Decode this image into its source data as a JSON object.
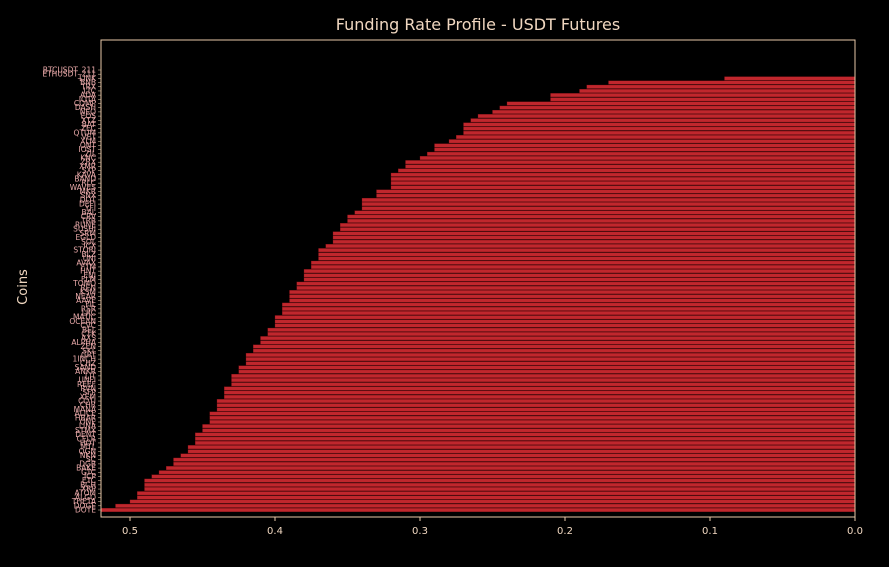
{
  "chart_data": {
    "type": "bar",
    "orientation": "horizontal",
    "title": "Funding Rate Profile - USDT Futures",
    "xlabel": "",
    "ylabel": "Coins",
    "xlim": [
      0.52,
      0.0
    ],
    "x_axis_reversed": true,
    "xticks": [
      0.5,
      0.4,
      0.3,
      0.2,
      0.1,
      0.0
    ],
    "grid": false,
    "legend": "none",
    "bar_color": "#c0272d",
    "background_color": "#000000",
    "frame_color": "#e8c9a8",
    "text_color": "#f0d7c0",
    "tick_label_color": "#e9a9a9",
    "categories": [
      "BTCUSDT_211",
      "ETHUSDT_211",
      "LINK",
      "BNB",
      "TRX",
      "LTC",
      "ADA",
      "IOTA",
      "COMP",
      "DASH",
      "NEO",
      "EOS",
      "XTZ",
      "BAT",
      "ZEC",
      "QTUM",
      "VET",
      "XLM",
      "ONT",
      "IOST",
      "ZIL",
      "KNC",
      "ZRX",
      "XMR",
      "SXP",
      "KAVA",
      "BAND",
      "RLC",
      "WAVES",
      "MKR",
      "SNX",
      "DOT",
      "DEFI",
      "YFI",
      "BAL",
      "CRV",
      "TRB",
      "RUNE",
      "SUSHI",
      "SRM",
      "EGLD",
      "SOL",
      "ICX",
      "STORJ",
      "BLZ",
      "UNI",
      "AVAX",
      "FTM",
      "HNT",
      "ENJ",
      "FLM",
      "TOMO",
      "REN",
      "KSM",
      "NEAR",
      "AAVE",
      "FIL",
      "RSR",
      "LRC",
      "MATIC",
      "OCEAN",
      "CVC",
      "BEL",
      "CTK",
      "AXS",
      "ALPHA",
      "ZEN",
      "SKL",
      "GRT",
      "1INCH",
      "CHZ",
      "SAND",
      "ANKR",
      "LIT",
      "UNFI",
      "REEF",
      "RVN",
      "SFP",
      "XEM",
      "COTI",
      "CHR",
      "MANA",
      "ALICE",
      "HBAR",
      "ONE",
      "LINA",
      "STMX",
      "DENT",
      "CELR",
      "HOT",
      "MTL",
      "OGN",
      "NKN",
      "SC",
      "DGB",
      "BAKE",
      "GTC",
      "ICP",
      "ETC",
      "BCH",
      "XRP",
      "ATOM",
      "ALGO",
      "THETA",
      "DOGE",
      "DOTE"
    ],
    "values": [
      0.0,
      0.0,
      0.09,
      0.17,
      0.185,
      0.19,
      0.21,
      0.21,
      0.24,
      0.245,
      0.25,
      0.26,
      0.265,
      0.27,
      0.27,
      0.27,
      0.275,
      0.28,
      0.29,
      0.29,
      0.295,
      0.3,
      0.31,
      0.31,
      0.315,
      0.32,
      0.32,
      0.32,
      0.32,
      0.33,
      0.33,
      0.34,
      0.34,
      0.34,
      0.345,
      0.35,
      0.35,
      0.355,
      0.355,
      0.36,
      0.36,
      0.36,
      0.365,
      0.37,
      0.37,
      0.37,
      0.375,
      0.375,
      0.38,
      0.38,
      0.38,
      0.385,
      0.385,
      0.39,
      0.39,
      0.39,
      0.395,
      0.395,
      0.395,
      0.4,
      0.4,
      0.4,
      0.405,
      0.405,
      0.41,
      0.41,
      0.415,
      0.415,
      0.42,
      0.42,
      0.42,
      0.425,
      0.425,
      0.43,
      0.43,
      0.43,
      0.435,
      0.435,
      0.435,
      0.44,
      0.44,
      0.44,
      0.445,
      0.445,
      0.445,
      0.45,
      0.45,
      0.455,
      0.455,
      0.455,
      0.46,
      0.46,
      0.465,
      0.47,
      0.47,
      0.475,
      0.48,
      0.485,
      0.49,
      0.49,
      0.49,
      0.495,
      0.495,
      0.5,
      0.51,
      0.52
    ]
  }
}
